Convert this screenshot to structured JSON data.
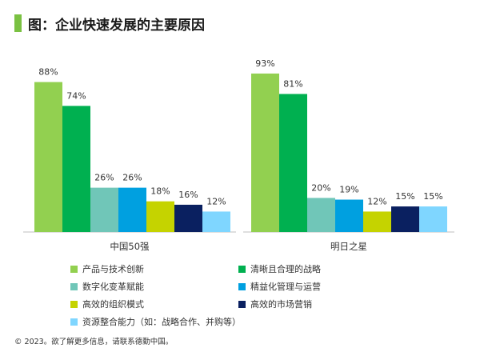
{
  "header": {
    "title": "图：企业快速发展的主要原因"
  },
  "footer": {
    "text": "© 2023。欲了解更多信息，请联系德勤中国。"
  },
  "chart_data": {
    "type": "bar",
    "categories": [
      "中国50强",
      "明日之星"
    ],
    "value_suffix": "%",
    "ylim": [
      0,
      100
    ],
    "grid": false,
    "legend_position": "bottom",
    "series": [
      {
        "name": "产品与技术创新",
        "color": "#92d050",
        "values": [
          88,
          93
        ]
      },
      {
        "name": "清晰且合理的战略",
        "color": "#00b050",
        "values": [
          74,
          81
        ]
      },
      {
        "name": "数字化变革赋能",
        "color": "#70c6b8",
        "values": [
          26,
          20
        ]
      },
      {
        "name": "精益化管理与运营",
        "color": "#00a0e0",
        "values": [
          26,
          19
        ]
      },
      {
        "name": "高效的组织模式",
        "color": "#c5d300",
        "values": [
          18,
          12
        ]
      },
      {
        "name": "高效的市场营销",
        "color": "#0a2060",
        "values": [
          16,
          15
        ]
      },
      {
        "name": "资源整合能力（如：战略合作、并购等）",
        "color": "#7fd6ff",
        "values": [
          12,
          15
        ]
      }
    ]
  }
}
